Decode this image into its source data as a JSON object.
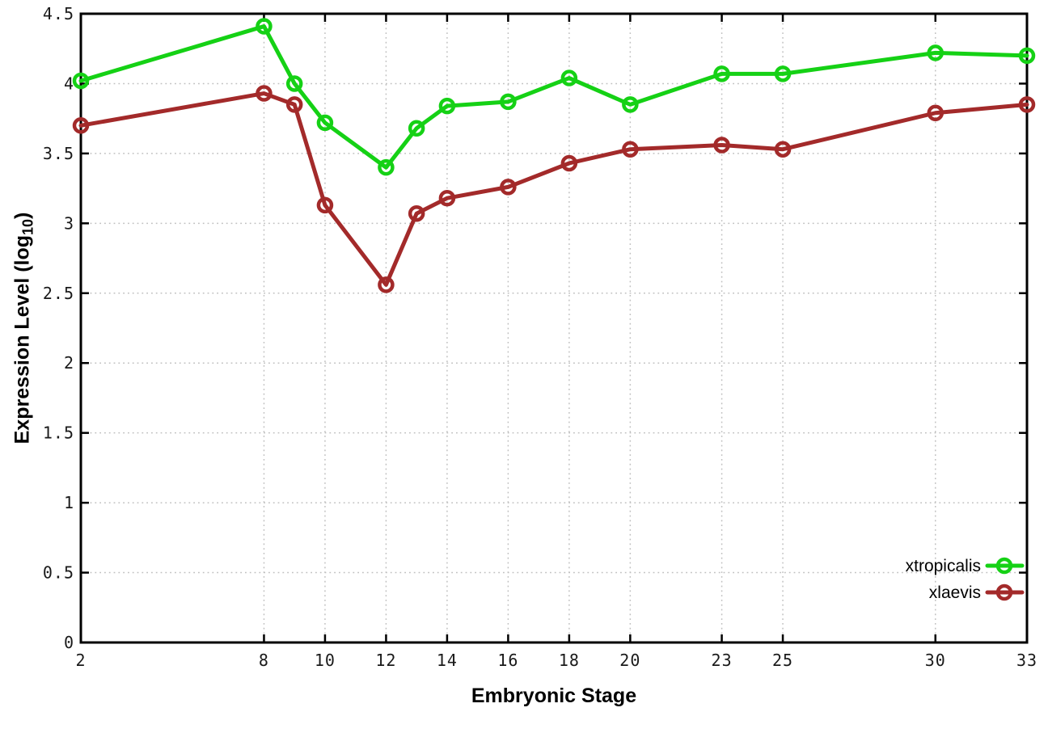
{
  "window": {
    "background_color": "#ffffff"
  },
  "chart_data": {
    "type": "line",
    "title": "",
    "xlabel": "Embryonic Stage",
    "ylabel": "Expression Level (log10)",
    "ylabel_parts": {
      "prefix": "Expression Level (log",
      "subscript": "10",
      "suffix": ")"
    },
    "x": [
      2,
      8,
      9,
      10,
      12,
      13,
      14,
      16,
      18,
      20,
      23,
      25,
      30,
      33
    ],
    "series": [
      {
        "name": "xtropicalis",
        "color": "#15d115",
        "marker": "open-circle",
        "values": [
          4.02,
          4.41,
          4.0,
          3.72,
          3.4,
          3.68,
          3.84,
          3.87,
          4.04,
          3.85,
          4.07,
          4.07,
          4.22,
          4.2
        ]
      },
      {
        "name": "xlaevis",
        "color": "#a32a2a",
        "marker": "open-circle",
        "values": [
          3.7,
          3.93,
          3.85,
          3.13,
          2.56,
          3.07,
          3.18,
          3.26,
          3.43,
          3.53,
          3.56,
          3.53,
          3.79,
          3.85
        ]
      }
    ],
    "x_axis": {
      "range": [
        2,
        33
      ],
      "ticks": [
        2,
        8,
        10,
        12,
        14,
        16,
        18,
        20,
        23,
        25,
        30,
        33
      ],
      "tick_labels": [
        "2",
        "8",
        "10",
        "12",
        "14",
        "16",
        "18",
        "20",
        "23",
        "25",
        "30",
        "33"
      ]
    },
    "y_axis": {
      "range": [
        0,
        4.5
      ],
      "ticks": [
        0,
        0.5,
        1,
        1.5,
        2,
        2.5,
        3,
        3.5,
        4,
        4.5
      ],
      "tick_labels": [
        "0",
        "0.5",
        "1",
        "1.5",
        "2",
        "2.5",
        "3",
        "3.5",
        "4",
        "4.5"
      ]
    },
    "grid": true,
    "legend": {
      "position": "bottom-right",
      "entries": [
        "xtropicalis",
        "xlaevis"
      ]
    },
    "styles": {
      "grid_color": "#c0c0c0",
      "axis_color": "#000000",
      "tick_label_color": "#1a1a1a",
      "legend_text_color": "#000000"
    }
  }
}
